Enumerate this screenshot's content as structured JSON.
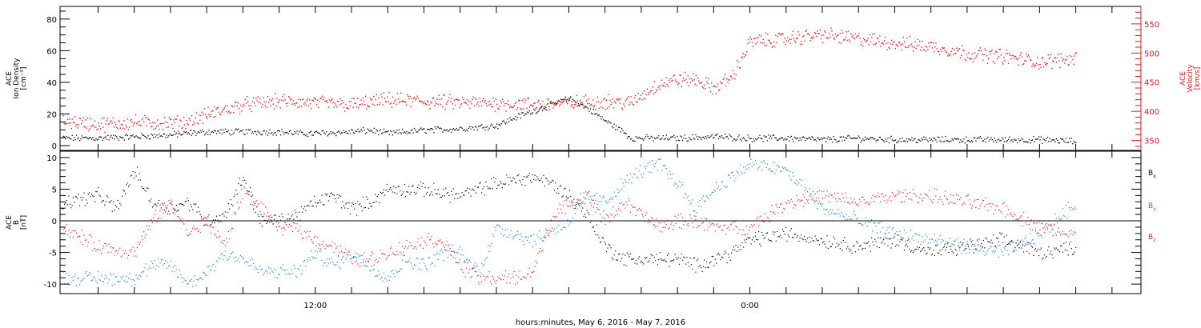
{
  "colors": {
    "density": "#000000",
    "velocity": "#e02020",
    "bx": "#000000",
    "by": "#1a7fd4",
    "bz": "#e02020",
    "axis": "#000000",
    "velocity_axis": "#d21e1e"
  },
  "xlabel": "hours:minutes, May  6, 2016 - May  7, 2016",
  "chart_data": [
    {
      "type": "scatter",
      "panel": "top",
      "ylabel_left": [
        "ACE",
        "Ion Density",
        "[cm⁻³]"
      ],
      "ylabel_right": [
        "ACE",
        "Velocity",
        "[km/s]"
      ],
      "x_ticklabels": [
        "12:00",
        "0:00"
      ],
      "left_axis": {
        "ylim": [
          -3,
          88
        ],
        "ticks": [
          0,
          20,
          40,
          60,
          80
        ]
      },
      "right_axis": {
        "ylim": [
          333,
          580
        ],
        "ticks": [
          350,
          400,
          450,
          500,
          550
        ]
      },
      "x_unit": "hours since 2016-05-06 00:00",
      "xlim": [
        4.95,
        34.8
      ],
      "series": [
        {
          "name": "Ion Density",
          "axis": "left",
          "color": "#000000",
          "x": [
            5,
            6,
            7,
            8,
            8.5,
            9,
            10,
            11,
            11.5,
            12,
            13,
            13.5,
            14,
            15,
            16,
            17,
            17.5,
            18,
            19,
            19.5,
            20,
            20.5,
            20.7,
            21,
            22,
            23,
            24,
            25,
            26,
            27,
            28,
            29,
            30,
            31,
            32,
            33
          ],
          "y": [
            5,
            5,
            6,
            7,
            8,
            9,
            9,
            9,
            8,
            8,
            9,
            10,
            8,
            10,
            11,
            13,
            18,
            22,
            30,
            24,
            16,
            9,
            5,
            5,
            5,
            6,
            5,
            5,
            4,
            5,
            4,
            4,
            4,
            4,
            4,
            3
          ]
        },
        {
          "name": "Velocity",
          "axis": "right",
          "color": "#e02020",
          "x": [
            5,
            6,
            7,
            8,
            8.5,
            9,
            10,
            11,
            12,
            13,
            14,
            15,
            16,
            17,
            18,
            19,
            20,
            20.7,
            21,
            21.5,
            22,
            22.5,
            23,
            23.5,
            24,
            25,
            26,
            27,
            28,
            29,
            30,
            31,
            32,
            33
          ],
          "y": [
            385,
            378,
            382,
            380,
            382,
            395,
            412,
            418,
            415,
            412,
            420,
            418,
            415,
            415,
            412,
            415,
            418,
            415,
            428,
            448,
            455,
            455,
            440,
            460,
            520,
            525,
            532,
            525,
            518,
            512,
            500,
            495,
            485,
            492
          ]
        }
      ]
    },
    {
      "type": "scatter",
      "panel": "bottom",
      "ylabel_left": [
        "ACE",
        "B",
        "[nT]"
      ],
      "x_ticklabels": [
        "12:00",
        "0:00"
      ],
      "ylim": [
        -11.5,
        11
      ],
      "yticks": [
        -10,
        -5,
        0,
        5,
        10
      ],
      "zero_line": true,
      "x_unit": "hours since 2016-05-06 00:00",
      "xlim": [
        4.95,
        34.8
      ],
      "series": [
        {
          "name": "B",
          "subscript": "x",
          "color": "#000000",
          "x": [
            5,
            6,
            6.5,
            7,
            7.5,
            8,
            8.5,
            9,
            9.5,
            10,
            10.5,
            11,
            11.5,
            12,
            12.5,
            13,
            13.5,
            14,
            15,
            16,
            17,
            18,
            18.5,
            19,
            19.5,
            20,
            20.5,
            21,
            22,
            22.5,
            23,
            23.5,
            24,
            25,
            26,
            27,
            28,
            29,
            30,
            31,
            32,
            33
          ],
          "y": [
            3,
            4,
            2,
            8,
            3,
            2,
            3,
            0,
            1,
            7,
            0,
            0,
            1,
            3,
            4,
            2,
            3,
            5,
            5,
            4,
            6,
            7,
            6,
            4,
            1,
            -4,
            -6,
            -6,
            -6,
            -7,
            -6,
            -5,
            -3,
            -2,
            -3,
            -4,
            -3,
            -5,
            -4,
            -3,
            -5,
            -4
          ]
        },
        {
          "name": "B",
          "subscript": "y",
          "color": "#1a7fd4",
          "x": [
            5,
            6,
            7,
            7.5,
            8,
            8.5,
            9,
            9.5,
            10,
            10.5,
            11,
            11.5,
            12,
            12.5,
            13,
            13.5,
            14,
            14.5,
            15,
            15.5,
            16,
            16.5,
            17,
            17.5,
            18,
            19,
            19.5,
            20,
            20.5,
            21,
            21.5,
            22,
            22.5,
            23,
            23.5,
            24,
            25,
            26,
            27,
            28,
            29,
            30,
            31,
            32,
            33
          ],
          "y": [
            -9,
            -9,
            -9,
            -7,
            -7,
            -10,
            -8,
            -5,
            -6,
            -8,
            -8,
            -8,
            -5,
            -7,
            -5,
            -7,
            -9,
            -6,
            -7,
            -5,
            -5,
            -8,
            -1,
            -2,
            -3,
            0,
            4,
            3,
            6,
            8,
            9,
            6,
            2,
            5,
            7,
            9,
            8,
            2,
            0,
            -2,
            -3,
            -4,
            -5,
            -2,
            3
          ]
        },
        {
          "name": "B",
          "subscript": "z",
          "color": "#e02020",
          "x": [
            5,
            6,
            7,
            7.5,
            8,
            8.5,
            9,
            9.5,
            10,
            10.5,
            11,
            11.5,
            12,
            12.5,
            13,
            13.5,
            14,
            14.5,
            15,
            15.5,
            16,
            16.5,
            17,
            17.5,
            18,
            18.5,
            19,
            19.5,
            20,
            20.5,
            21,
            21.5,
            22,
            22.5,
            23,
            23.5,
            24,
            25,
            26,
            27,
            28,
            29,
            30,
            31,
            32,
            33
          ],
          "y": [
            -1,
            -4,
            -5,
            0,
            3,
            -2,
            0,
            -4,
            5,
            2,
            -1,
            -1,
            -3,
            -4,
            -6,
            -6,
            -5,
            -4,
            -3,
            -3,
            -7,
            -9,
            -9,
            -9,
            -8,
            0,
            3,
            4,
            0,
            3,
            1,
            -1,
            0,
            0,
            -1,
            -1,
            -1,
            3,
            4,
            3,
            4,
            4,
            3,
            2,
            -1,
            -2
          ]
        }
      ]
    }
  ]
}
